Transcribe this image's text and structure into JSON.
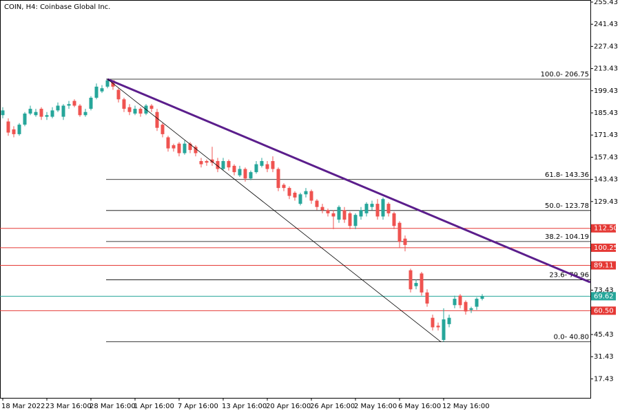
{
  "chart_data": {
    "type": "candlestick",
    "title": "COIN, H4:  Coinbase Global Inc.",
    "categories": [
      "18 Mar 2022",
      null,
      null,
      null,
      null,
      null,
      null,
      null,
      "23 Mar 16:00",
      null,
      null,
      null,
      null,
      null,
      null,
      null,
      "28 Mar 16:00",
      null,
      null,
      null,
      null,
      null,
      null,
      null,
      "1 Apr 16:00",
      null,
      null,
      null,
      null,
      null,
      null,
      null,
      "7 Apr 16:00",
      null,
      null,
      null,
      null,
      null,
      null,
      null,
      "13 Apr 16:00",
      null,
      null,
      null,
      null,
      null,
      null,
      null,
      "20 Apr 16:00",
      null,
      null,
      null,
      null,
      null,
      null,
      null,
      "26 Apr 16:00",
      null,
      null,
      null,
      null,
      null,
      null,
      null,
      "2 May 16:00",
      null,
      null,
      null,
      null,
      null,
      null,
      null,
      "6 May 16:00",
      null,
      null,
      null,
      null,
      null,
      null,
      null,
      "12 May 16:00",
      null,
      null,
      null,
      null,
      null,
      null,
      null
    ],
    "open": [
      184,
      180,
      175,
      172,
      178,
      185,
      184,
      188,
      183,
      183,
      187,
      183,
      190,
      193,
      190,
      184,
      188,
      195,
      199,
      202,
      206,
      200,
      194,
      189,
      185,
      188,
      185,
      190,
      186,
      178,
      170,
      165,
      166,
      160,
      166,
      164,
      155,
      155,
      156,
      155,
      150,
      155,
      152,
      146,
      150,
      144,
      148,
      152,
      153,
      155,
      150,
      140,
      138,
      135,
      128,
      134,
      136,
      130,
      126,
      124,
      122,
      118,
      124,
      122,
      114,
      120,
      122,
      126,
      128,
      120,
      128,
      122,
      116,
      106,
      86,
      76,
      84,
      72,
      56,
      51,
      42,
      52,
      64,
      70,
      66,
      61,
      63,
      68
    ],
    "high": [
      189,
      182,
      177,
      179,
      186,
      190,
      188,
      189,
      186,
      189,
      192,
      191,
      193,
      194,
      191,
      188,
      196,
      204,
      203,
      206.75,
      206,
      201,
      195,
      191,
      190,
      189,
      191,
      191,
      188,
      179,
      171,
      166,
      167,
      168,
      167,
      165,
      157,
      156,
      164,
      157,
      157,
      156,
      153,
      152,
      151,
      149,
      155,
      157,
      155,
      158,
      151,
      141,
      139,
      136,
      135,
      138,
      137,
      131,
      128,
      125,
      124,
      127,
      126,
      123,
      122,
      126,
      129,
      130,
      131,
      132,
      129,
      123,
      117,
      108,
      87,
      80,
      85,
      74,
      58,
      53,
      62,
      58,
      70,
      71,
      67,
      63,
      69,
      71
    ],
    "low": [
      182,
      171,
      170,
      171,
      177,
      184,
      183,
      181,
      181,
      182,
      186,
      181,
      188,
      189,
      183,
      183,
      187,
      194,
      198,
      201,
      200,
      192,
      186,
      184,
      184,
      183,
      184,
      186,
      174,
      170,
      161,
      161,
      158,
      159,
      160,
      158,
      151,
      152,
      152,
      148,
      149,
      149,
      146,
      145,
      142,
      143,
      147,
      151,
      148,
      148,
      136,
      136,
      131,
      130,
      127,
      132,
      128,
      124,
      122,
      120,
      112,
      116,
      116,
      112,
      112,
      118,
      120,
      124,
      118,
      118,
      120,
      112,
      100,
      98,
      72,
      74,
      70,
      63,
      48,
      48,
      40.8,
      50,
      62,
      62,
      58,
      59,
      61,
      67
    ],
    "close": [
      187,
      173,
      172,
      178,
      185,
      188,
      186,
      183,
      184,
      187,
      190,
      190,
      191,
      190,
      184,
      186,
      195,
      202,
      201,
      206,
      202,
      194,
      188,
      186,
      188,
      185,
      190,
      188,
      176,
      172,
      163,
      163,
      160,
      166,
      162,
      160,
      153,
      154,
      154,
      150,
      155,
      151,
      148,
      150,
      144,
      148,
      153,
      155,
      150,
      150,
      138,
      138,
      133,
      132,
      134,
      136,
      130,
      126,
      124,
      122,
      120,
      126,
      118,
      114,
      121,
      124,
      128,
      128,
      120,
      131,
      122,
      114,
      104,
      102,
      74,
      78,
      72,
      65,
      50,
      50,
      55,
      56,
      68,
      64,
      60,
      62,
      68,
      69.62
    ],
    "up_color": "#26a69a",
    "down_color": "#ef5350",
    "ylim": [
      5.43,
      255.43
    ],
    "yticks": [
      255.43,
      241.43,
      227.43,
      213.43,
      199.43,
      185.43,
      171.43,
      157.43,
      143.43,
      129.43,
      73.43,
      45.43,
      31.43,
      17.43
    ],
    "price_levels": [
      {
        "value": 112.5,
        "label": "112.50",
        "color": "#e53935"
      },
      {
        "value": 100.25,
        "label": "100.25",
        "color": "#e53935"
      },
      {
        "value": 89.11,
        "label": "89.11",
        "color": "#e53935"
      },
      {
        "value": 60.5,
        "label": "60.50",
        "color": "#e53935"
      },
      {
        "value": 69.62,
        "label": "69.62",
        "color": "#26a69a"
      }
    ],
    "fibonacci": [
      {
        "value": 206.75,
        "label": "100.0- 206.75"
      },
      {
        "value": 143.36,
        "label": "61.8- 143.36"
      },
      {
        "value": 123.78,
        "label": "50.0- 123.78"
      },
      {
        "value": 104.19,
        "label": "38.2- 104.19"
      },
      {
        "value": 79.96,
        "label": "23.6- 79.96"
      },
      {
        "value": 40.8,
        "label": "0.0- 40.80"
      }
    ],
    "trendlines": [
      {
        "color": "#5b1e8c",
        "width": 3,
        "x": [
          19,
          106.6
        ],
        "values": [
          206.75,
          78.4
        ]
      },
      {
        "color": "#000000",
        "width": 0.8,
        "x": [
          19,
          79.5
        ],
        "values": [
          206.75,
          40.8
        ]
      }
    ]
  }
}
